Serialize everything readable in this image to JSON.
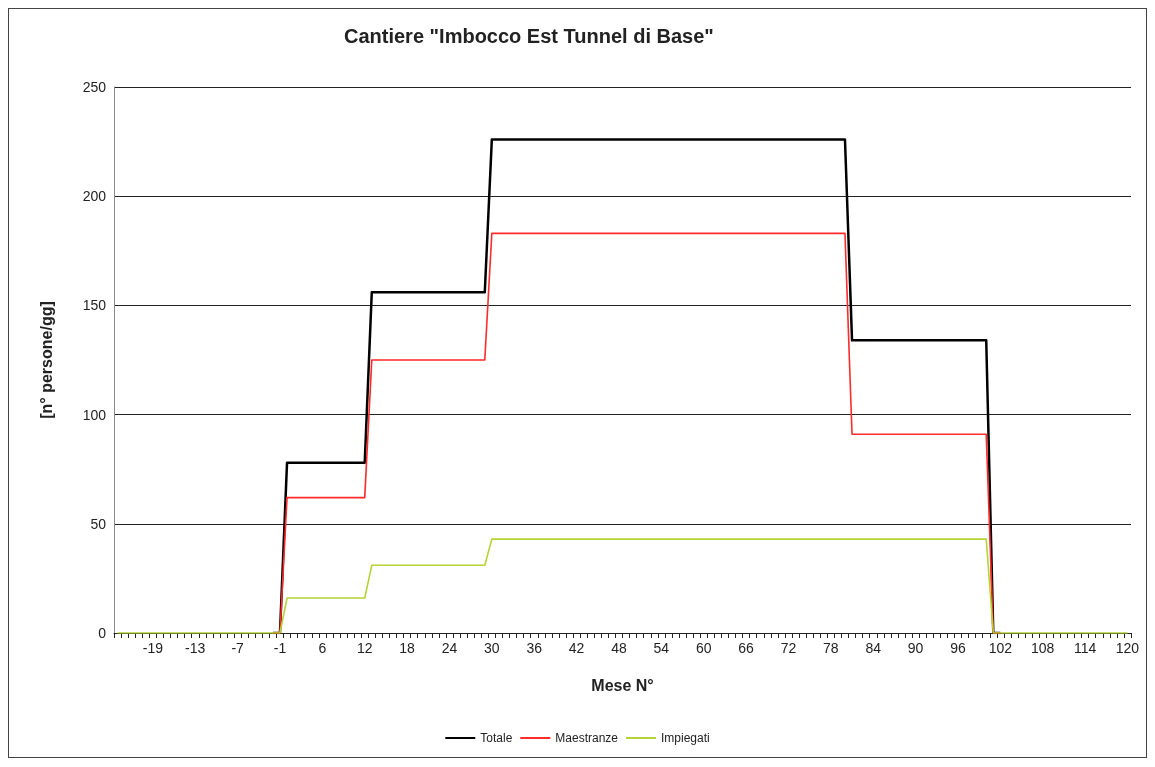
{
  "chart_data": {
    "type": "line",
    "title": "Cantiere \"Imbocco Est Tunnel di Base\"",
    "xlabel": "Mese N°",
    "ylabel": "[n° persone/gg]",
    "categories": [
      null,
      null,
      null,
      null,
      null,
      "-19",
      null,
      null,
      null,
      null,
      null,
      "-13",
      null,
      null,
      null,
      null,
      null,
      "-7",
      null,
      null,
      null,
      null,
      null,
      "-1",
      null,
      null,
      null,
      null,
      null,
      "6",
      null,
      null,
      null,
      null,
      null,
      "12",
      null,
      null,
      null,
      null,
      null,
      "18",
      null,
      null,
      null,
      null,
      null,
      "24",
      null,
      null,
      null,
      null,
      null,
      "30",
      null,
      null,
      null,
      null,
      null,
      "36",
      null,
      null,
      null,
      null,
      null,
      "42",
      null,
      null,
      null,
      null,
      null,
      "48",
      null,
      null,
      null,
      null,
      null,
      "54",
      null,
      null,
      null,
      null,
      null,
      "60",
      null,
      null,
      null,
      null,
      null,
      "66",
      null,
      null,
      null,
      null,
      null,
      "72",
      null,
      null,
      null,
      null,
      null,
      "78",
      null,
      null,
      null,
      null,
      null,
      "84",
      null,
      null,
      null,
      null,
      null,
      "90",
      null,
      null,
      null,
      null,
      null,
      "96",
      null,
      null,
      null,
      null,
      null,
      "102",
      null,
      null,
      null,
      null,
      null,
      "108",
      null,
      null,
      null,
      null,
      null,
      "114",
      null,
      null,
      null,
      null,
      null,
      "120"
    ],
    "series": [
      {
        "name": "Totale",
        "color": "#000000",
        "values": [
          null,
          null,
          null,
          null,
          null,
          null,
          null,
          null,
          null,
          null,
          null,
          null,
          null,
          null,
          null,
          null,
          null,
          null,
          null,
          null,
          null,
          null,
          0,
          0,
          78,
          78,
          78,
          78,
          78,
          78,
          78,
          78,
          78,
          78,
          78,
          78,
          156,
          156,
          156,
          156,
          156,
          156,
          156,
          156,
          156,
          156,
          156,
          156,
          156,
          156,
          156,
          156,
          156,
          226,
          226,
          226,
          226,
          226,
          226,
          226,
          226,
          226,
          226,
          226,
          226,
          226,
          226,
          226,
          226,
          226,
          226,
          226,
          226,
          226,
          226,
          226,
          226,
          226,
          226,
          226,
          226,
          226,
          226,
          226,
          226,
          226,
          226,
          226,
          226,
          226,
          226,
          226,
          226,
          226,
          226,
          226,
          226,
          226,
          226,
          226,
          226,
          226,
          226,
          226,
          134,
          134,
          134,
          134,
          134,
          134,
          134,
          134,
          134,
          134,
          134,
          134,
          134,
          134,
          134,
          134,
          134,
          134,
          134,
          134,
          0,
          0,
          null,
          null,
          null,
          null,
          null,
          null,
          null,
          null,
          null,
          null,
          null,
          null,
          null,
          null,
          null,
          null,
          null,
          null
        ]
      },
      {
        "name": "Maestranze",
        "color": "#ff2a2a",
        "values": [
          null,
          null,
          null,
          null,
          null,
          null,
          null,
          null,
          null,
          null,
          null,
          null,
          null,
          null,
          null,
          null,
          null,
          null,
          null,
          null,
          null,
          null,
          0,
          0,
          62,
          62,
          62,
          62,
          62,
          62,
          62,
          62,
          62,
          62,
          62,
          62,
          125,
          125,
          125,
          125,
          125,
          125,
          125,
          125,
          125,
          125,
          125,
          125,
          125,
          125,
          125,
          125,
          125,
          183,
          183,
          183,
          183,
          183,
          183,
          183,
          183,
          183,
          183,
          183,
          183,
          183,
          183,
          183,
          183,
          183,
          183,
          183,
          183,
          183,
          183,
          183,
          183,
          183,
          183,
          183,
          183,
          183,
          183,
          183,
          183,
          183,
          183,
          183,
          183,
          183,
          183,
          183,
          183,
          183,
          183,
          183,
          183,
          183,
          183,
          183,
          183,
          183,
          183,
          183,
          91,
          91,
          91,
          91,
          91,
          91,
          91,
          91,
          91,
          91,
          91,
          91,
          91,
          91,
          91,
          91,
          91,
          91,
          91,
          91,
          0,
          0,
          null,
          null,
          null,
          null,
          null,
          null,
          null,
          null,
          null,
          null,
          null,
          null,
          null,
          null,
          null,
          null,
          null,
          null
        ]
      },
      {
        "name": "Impiegati",
        "color": "#b5d334",
        "values": [
          0,
          0,
          0,
          0,
          0,
          0,
          0,
          0,
          0,
          0,
          0,
          0,
          0,
          0,
          0,
          0,
          0,
          0,
          0,
          0,
          0,
          0,
          0,
          0,
          16,
          16,
          16,
          16,
          16,
          16,
          16,
          16,
          16,
          16,
          16,
          16,
          31,
          31,
          31,
          31,
          31,
          31,
          31,
          31,
          31,
          31,
          31,
          31,
          31,
          31,
          31,
          31,
          31,
          43,
          43,
          43,
          43,
          43,
          43,
          43,
          43,
          43,
          43,
          43,
          43,
          43,
          43,
          43,
          43,
          43,
          43,
          43,
          43,
          43,
          43,
          43,
          43,
          43,
          43,
          43,
          43,
          43,
          43,
          43,
          43,
          43,
          43,
          43,
          43,
          43,
          43,
          43,
          43,
          43,
          43,
          43,
          43,
          43,
          43,
          43,
          43,
          43,
          43,
          43,
          43,
          43,
          43,
          43,
          43,
          43,
          43,
          43,
          43,
          43,
          43,
          43,
          43,
          43,
          43,
          43,
          43,
          43,
          43,
          43,
          0,
          0,
          0,
          0,
          0,
          0,
          0,
          0,
          0,
          0,
          0,
          0,
          0,
          0,
          0,
          0,
          0,
          0,
          0,
          0
        ]
      }
    ],
    "ylim": [
      0,
      250
    ],
    "yticks": [
      0,
      50,
      100,
      150,
      200,
      250
    ],
    "grid": "y",
    "legend": "bottom",
    "marker": "none",
    "line_style": "solid"
  }
}
